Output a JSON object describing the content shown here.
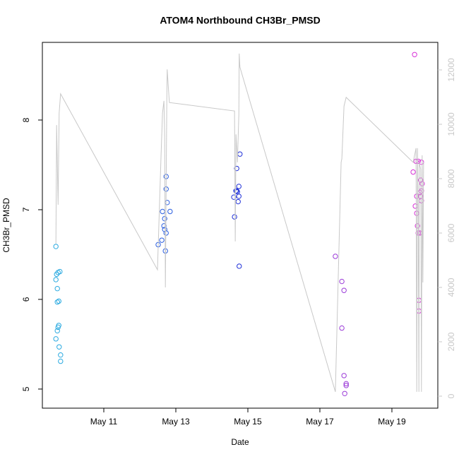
{
  "chart_data": {
    "type": "scatter",
    "title": "ATOM4 Northbound CH3Br_PMSD",
    "x_label": "Date",
    "y_label": "CH3Br_PMSD",
    "xlim": [
      9.294,
      20.275
    ],
    "xticks": [
      {
        "value": 11,
        "label": "May 11"
      },
      {
        "value": 13,
        "label": "May 13"
      },
      {
        "value": 15,
        "label": "May 15"
      },
      {
        "value": 17,
        "label": "May 17"
      },
      {
        "value": 19,
        "label": "May 19"
      }
    ],
    "ylim": [
      4.787,
      8.866
    ],
    "yticks": [
      5,
      6,
      7,
      8
    ],
    "y2lim": [
      -442,
      13013
    ],
    "y2ticks": [
      0,
      2000,
      4000,
      6000,
      8000,
      10000,
      12000
    ],
    "y2_color": "#c8c8c8",
    "series": [
      {
        "color": "#29a9e0",
        "x": [
          9.67,
          9.69,
          9.73,
          9.78,
          9.67,
          9.71,
          9.71,
          9.75,
          9.75,
          9.73,
          9.71,
          9.67,
          9.76,
          9.8,
          9.8
        ],
        "values": [
          6.59,
          6.28,
          6.3,
          6.31,
          6.22,
          6.12,
          5.97,
          5.98,
          5.71,
          5.69,
          5.65,
          5.56,
          5.47,
          5.38,
          5.31
        ]
      },
      {
        "color": "#2b5fe0",
        "x": [
          12.73,
          12.73,
          12.76,
          12.63,
          12.84,
          12.69,
          12.67,
          12.69,
          12.73,
          12.61,
          12.51,
          12.71
        ],
        "values": [
          7.37,
          7.23,
          7.08,
          6.98,
          6.98,
          6.9,
          6.82,
          6.78,
          6.74,
          6.66,
          6.61,
          6.54
        ]
      },
      {
        "color": "#1f30d8",
        "x": [
          14.78,
          14.69,
          14.75,
          14.69,
          14.71,
          14.67,
          14.61,
          14.75,
          14.73,
          14.63,
          14.76
        ],
        "values": [
          7.62,
          7.46,
          7.26,
          7.21,
          7.2,
          7.21,
          7.14,
          7.15,
          7.09,
          6.92,
          6.37
        ]
      },
      {
        "color": "#9b3bd8",
        "x": [
          17.43,
          17.61,
          17.67,
          17.61,
          17.67,
          17.73,
          17.73,
          17.69
        ],
        "values": [
          6.48,
          6.2,
          6.1,
          5.68,
          5.15,
          5.06,
          5.04,
          4.95
        ]
      },
      {
        "color": "#d830d8",
        "x": [
          19.63,
          19.59,
          19.67,
          19.73,
          19.82,
          19.8,
          19.84,
          19.69,
          19.82,
          19.78,
          19.8,
          19.82,
          19.65,
          19.69,
          19.71,
          19.73,
          19.78,
          19.75,
          19.75
        ],
        "values": [
          8.73,
          7.42,
          7.54,
          7.54,
          7.53,
          7.33,
          7.29,
          7.15,
          7.21,
          7.19,
          7.15,
          7.1,
          7.04,
          6.96,
          6.82,
          6.74,
          6.74,
          5.99,
          5.87
        ]
      },
      {
        "type": "line",
        "axis": "y2",
        "color": "#c8c8c8",
        "x": [
          9.67,
          9.69,
          9.73,
          9.76,
          9.8,
          12.49,
          12.59,
          12.63,
          12.67,
          12.69,
          12.71,
          12.75,
          12.76,
          12.82,
          14.63,
          14.65,
          14.67,
          14.71,
          14.75,
          14.76,
          14.78,
          17.43,
          17.59,
          17.61,
          17.67,
          17.73,
          19.59,
          19.67,
          19.69,
          19.71,
          19.73,
          19.75,
          19.76,
          19.8,
          19.82,
          19.84,
          19.86,
          19.88
        ],
        "values": [
          5610,
          9970,
          7040,
          10410,
          11120,
          4650,
          8860,
          10410,
          10860,
          9500,
          4000,
          10990,
          12020,
          10800,
          10490,
          5690,
          9630,
          8600,
          10360,
          12600,
          12100,
          160,
          8600,
          8730,
          10670,
          10990,
          8600,
          9120,
          160,
          9120,
          6780,
          160,
          8600,
          8340,
          160,
          8860,
          4180,
          8600
        ]
      }
    ]
  }
}
